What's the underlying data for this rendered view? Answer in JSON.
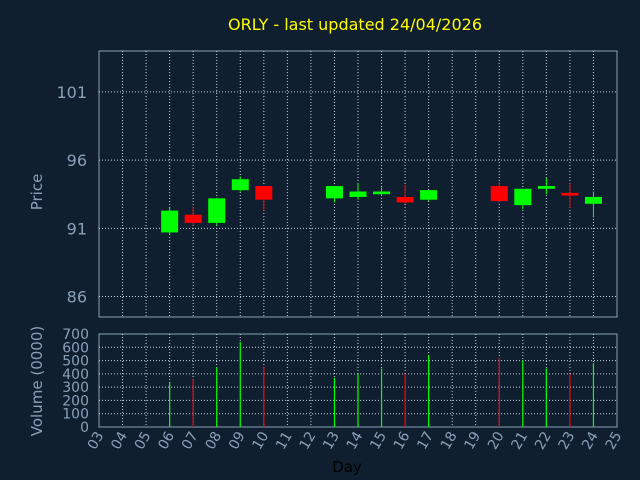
{
  "title": "ORLY - last updated 24/04/2026",
  "chart_data": [
    {
      "type": "candlestick",
      "ylabel": "Price",
      "ylim": [
        84.5,
        104.0
      ],
      "yticks": [
        "86",
        "91",
        "96",
        "101"
      ],
      "grid": true,
      "candles": [
        {
          "day": 6,
          "open": 90.7,
          "close": 92.3,
          "high": 92.5,
          "low": 90.5
        },
        {
          "day": 7,
          "open": 92.0,
          "close": 91.4,
          "high": 92.6,
          "low": 91.2
        },
        {
          "day": 8,
          "open": 91.4,
          "close": 93.2,
          "high": 93.2,
          "low": 91.2
        },
        {
          "day": 9,
          "open": 93.8,
          "close": 94.6,
          "high": 94.8,
          "low": 93.7
        },
        {
          "day": 10,
          "open": 94.1,
          "close": 93.1,
          "high": 94.1,
          "low": 92.3
        },
        {
          "day": 13,
          "open": 93.2,
          "close": 94.1,
          "high": 94.1,
          "low": 92.9
        },
        {
          "day": 14,
          "open": 93.3,
          "close": 93.7,
          "high": 94.3,
          "low": 93.1
        },
        {
          "day": 15,
          "open": 93.5,
          "close": 93.7,
          "high": 94.0,
          "low": 93.4
        },
        {
          "day": 16,
          "open": 93.3,
          "close": 92.9,
          "high": 94.2,
          "low": 92.8
        },
        {
          "day": 17,
          "open": 93.1,
          "close": 93.8,
          "high": 93.8,
          "low": 93.0
        },
        {
          "day": 20,
          "open": 94.1,
          "close": 93.0,
          "high": 94.4,
          "low": 92.9
        },
        {
          "day": 21,
          "open": 92.7,
          "close": 93.9,
          "high": 93.9,
          "low": 92.4
        },
        {
          "day": 22,
          "open": 93.9,
          "close": 94.1,
          "high": 94.7,
          "low": 93.5
        },
        {
          "day": 23,
          "open": 93.6,
          "close": 93.4,
          "high": 94.3,
          "low": 92.5
        },
        {
          "day": 24,
          "open": 92.8,
          "close": 93.3,
          "high": 93.7,
          "low": 91.8
        }
      ]
    },
    {
      "type": "bar",
      "ylabel": "Volume (0000)",
      "xlabel": "Day",
      "ylim": [
        0,
        700
      ],
      "yticks": [
        "0",
        "100",
        "200",
        "300",
        "400",
        "500",
        "600",
        "700"
      ],
      "categories": [
        "03",
        "04",
        "05",
        "06",
        "07",
        "08",
        "09",
        "10",
        "11",
        "12",
        "13",
        "14",
        "15",
        "16",
        "17",
        "18",
        "19",
        "20",
        "21",
        "22",
        "23",
        "24",
        "25"
      ],
      "bars": [
        {
          "day": 6,
          "value": 340,
          "direction": "up"
        },
        {
          "day": 7,
          "value": 360,
          "direction": "down"
        },
        {
          "day": 8,
          "value": 450,
          "direction": "up"
        },
        {
          "day": 9,
          "value": 640,
          "direction": "up"
        },
        {
          "day": 10,
          "value": 450,
          "direction": "down"
        },
        {
          "day": 13,
          "value": 370,
          "direction": "up"
        },
        {
          "day": 14,
          "value": 400,
          "direction": "up"
        },
        {
          "day": 15,
          "value": 440,
          "direction": "up"
        },
        {
          "day": 16,
          "value": 400,
          "direction": "down"
        },
        {
          "day": 17,
          "value": 540,
          "direction": "up"
        },
        {
          "day": 20,
          "value": 520,
          "direction": "down"
        },
        {
          "day": 21,
          "value": 500,
          "direction": "up"
        },
        {
          "day": 22,
          "value": 440,
          "direction": "up"
        },
        {
          "day": 23,
          "value": 400,
          "direction": "down"
        },
        {
          "day": 24,
          "value": 480,
          "direction": "up"
        }
      ]
    }
  ],
  "colors": {
    "background": "#0f1f30",
    "grid": "#c8d4e0",
    "frame": "#8aa0b8",
    "up": "#00ff00",
    "down": "#ff0000",
    "title": "#ffff00"
  }
}
